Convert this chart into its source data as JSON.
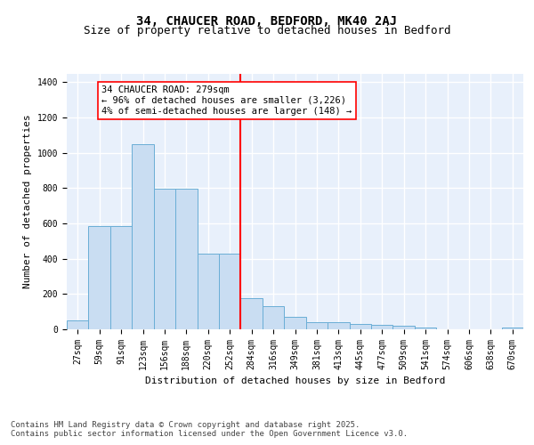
{
  "title_line1": "34, CHAUCER ROAD, BEDFORD, MK40 2AJ",
  "title_line2": "Size of property relative to detached houses in Bedford",
  "xlabel": "Distribution of detached houses by size in Bedford",
  "ylabel": "Number of detached properties",
  "bar_labels": [
    "27sqm",
    "59sqm",
    "91sqm",
    "123sqm",
    "156sqm",
    "188sqm",
    "220sqm",
    "252sqm",
    "284sqm",
    "316sqm",
    "349sqm",
    "381sqm",
    "413sqm",
    "445sqm",
    "477sqm",
    "509sqm",
    "541sqm",
    "574sqm",
    "606sqm",
    "638sqm",
    "670sqm"
  ],
  "bar_values": [
    50,
    585,
    585,
    1050,
    795,
    795,
    430,
    430,
    175,
    130,
    70,
    40,
    40,
    30,
    25,
    20,
    12,
    0,
    0,
    0,
    12
  ],
  "bar_color": "#c9ddf2",
  "bar_edge_color": "#6aaed6",
  "vline_x_index": 8,
  "vline_color": "red",
  "annotation_text": "34 CHAUCER ROAD: 279sqm\n← 96% of detached houses are smaller (3,226)\n4% of semi-detached houses are larger (148) →",
  "ylim": [
    0,
    1450
  ],
  "yticks": [
    0,
    200,
    400,
    600,
    800,
    1000,
    1200,
    1400
  ],
  "bg_color": "#e8f0fb",
  "grid_color": "#ffffff",
  "footer_line1": "Contains HM Land Registry data © Crown copyright and database right 2025.",
  "footer_line2": "Contains public sector information licensed under the Open Government Licence v3.0.",
  "title_fontsize": 10,
  "subtitle_fontsize": 9,
  "axis_label_fontsize": 8,
  "tick_fontsize": 7,
  "annotation_fontsize": 7.5,
  "footer_fontsize": 6.5
}
